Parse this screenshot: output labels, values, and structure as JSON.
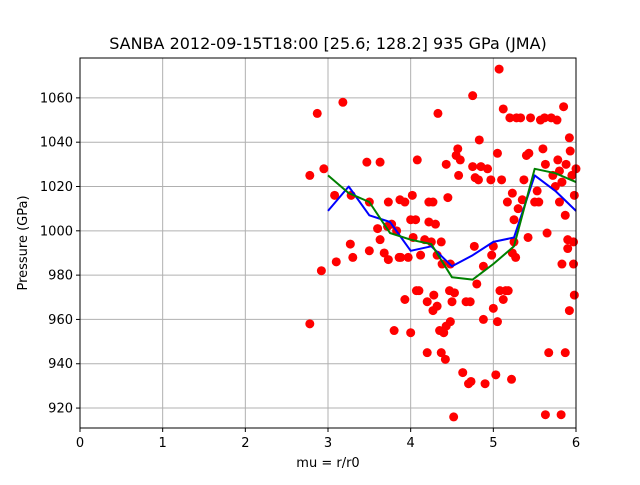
{
  "chart_data": {
    "type": "scatter",
    "title": "SANBA 2012-09-15T18:00 [25.6; 128.2] 935 GPa (JMA)",
    "xlabel": "mu = r/r0",
    "ylabel": "Pressure (GPa)",
    "xlim": [
      0,
      6
    ],
    "ylim": [
      911,
      1078
    ],
    "xticks": [
      0,
      1,
      2,
      3,
      4,
      5,
      6
    ],
    "yticks": [
      920,
      940,
      960,
      980,
      1000,
      1020,
      1040,
      1060
    ],
    "grid": true,
    "colors": {
      "points": "#ff0000",
      "blue_line": "#0000ff",
      "green_line": "#008000",
      "grid": "#b0b0b0"
    },
    "points": [
      [
        2.78,
        1025
      ],
      [
        2.78,
        958
      ],
      [
        2.87,
        1053
      ],
      [
        2.92,
        982
      ],
      [
        2.95,
        1028
      ],
      [
        3.08,
        1016
      ],
      [
        3.1,
        986
      ],
      [
        3.18,
        1058
      ],
      [
        3.27,
        994
      ],
      [
        3.28,
        1016
      ],
      [
        3.3,
        988
      ],
      [
        3.47,
        1031
      ],
      [
        3.5,
        991
      ],
      [
        3.5,
        1013
      ],
      [
        3.6,
        1001
      ],
      [
        3.63,
        1031
      ],
      [
        3.63,
        996
      ],
      [
        3.68,
        990
      ],
      [
        3.72,
        1002
      ],
      [
        3.73,
        1013
      ],
      [
        3.73,
        987
      ],
      [
        3.77,
        1003
      ],
      [
        3.8,
        955
      ],
      [
        3.83,
        1000
      ],
      [
        3.86,
        988
      ],
      [
        3.87,
        1014
      ],
      [
        3.88,
        988
      ],
      [
        3.93,
        969
      ],
      [
        3.93,
        1013
      ],
      [
        3.97,
        988
      ],
      [
        4.0,
        1005
      ],
      [
        4.0,
        954
      ],
      [
        4.02,
        1016
      ],
      [
        4.03,
        997
      ],
      [
        4.06,
        1005
      ],
      [
        4.07,
        973
      ],
      [
        4.08,
        1032
      ],
      [
        4.1,
        973
      ],
      [
        4.12,
        989
      ],
      [
        4.17,
        996
      ],
      [
        4.2,
        945
      ],
      [
        4.2,
        968
      ],
      [
        4.22,
        1013
      ],
      [
        4.22,
        1004
      ],
      [
        4.25,
        995
      ],
      [
        4.27,
        964
      ],
      [
        4.27,
        1013
      ],
      [
        4.28,
        971
      ],
      [
        4.3,
        1003
      ],
      [
        4.32,
        989
      ],
      [
        4.32,
        966
      ],
      [
        4.33,
        1053
      ],
      [
        4.35,
        955
      ],
      [
        4.37,
        945
      ],
      [
        4.37,
        995
      ],
      [
        4.38,
        985
      ],
      [
        4.4,
        954
      ],
      [
        4.42,
        942
      ],
      [
        4.43,
        957
      ],
      [
        4.43,
        1030
      ],
      [
        4.45,
        1015
      ],
      [
        4.47,
        973
      ],
      [
        4.48,
        959
      ],
      [
        4.48,
        985
      ],
      [
        4.5,
        968
      ],
      [
        4.52,
        916
      ],
      [
        4.53,
        972
      ],
      [
        4.55,
        1034
      ],
      [
        4.57,
        1037
      ],
      [
        4.58,
        1025
      ],
      [
        4.6,
        1032
      ],
      [
        4.63,
        936
      ],
      [
        4.67,
        968
      ],
      [
        4.7,
        931
      ],
      [
        4.72,
        968
      ],
      [
        4.73,
        932
      ],
      [
        4.75,
        1029
      ],
      [
        4.75,
        1061
      ],
      [
        4.77,
        993
      ],
      [
        4.78,
        1024
      ],
      [
        4.8,
        976
      ],
      [
        4.82,
        1023
      ],
      [
        4.83,
        1041
      ],
      [
        4.85,
        1029
      ],
      [
        4.88,
        960
      ],
      [
        4.88,
        984
      ],
      [
        4.9,
        931
      ],
      [
        4.93,
        1028
      ],
      [
        4.97,
        1023
      ],
      [
        4.98,
        989
      ],
      [
        5.0,
        965
      ],
      [
        5.0,
        993
      ],
      [
        5.03,
        935
      ],
      [
        5.05,
        959
      ],
      [
        5.05,
        1035
      ],
      [
        5.07,
        1073
      ],
      [
        5.08,
        973
      ],
      [
        5.1,
        1023
      ],
      [
        5.12,
        1055
      ],
      [
        5.12,
        969
      ],
      [
        5.15,
        973
      ],
      [
        5.17,
        1013
      ],
      [
        5.18,
        973
      ],
      [
        5.2,
        1051
      ],
      [
        5.22,
        933
      ],
      [
        5.23,
        1017
      ],
      [
        5.23,
        990
      ],
      [
        5.25,
        995
      ],
      [
        5.25,
        1005
      ],
      [
        5.27,
        988
      ],
      [
        5.28,
        1051
      ],
      [
        5.3,
        1010
      ],
      [
        5.33,
        1051
      ],
      [
        5.35,
        1014
      ],
      [
        5.37,
        1023
      ],
      [
        5.4,
        1034
      ],
      [
        5.42,
        997
      ],
      [
        5.43,
        1035
      ],
      [
        5.45,
        1051
      ],
      [
        5.5,
        1013
      ],
      [
        5.53,
        1018
      ],
      [
        5.55,
        1013
      ],
      [
        5.57,
        1050
      ],
      [
        5.6,
        1037
      ],
      [
        5.62,
        1051
      ],
      [
        5.63,
        1030
      ],
      [
        5.63,
        917
      ],
      [
        5.65,
        999
      ],
      [
        5.67,
        945
      ],
      [
        5.7,
        1051
      ],
      [
        5.72,
        1025
      ],
      [
        5.75,
        1020
      ],
      [
        5.77,
        1050
      ],
      [
        5.78,
        1032
      ],
      [
        5.8,
        1027
      ],
      [
        5.8,
        1013
      ],
      [
        5.82,
        917
      ],
      [
        5.83,
        1022
      ],
      [
        5.83,
        985
      ],
      [
        5.85,
        1056
      ],
      [
        5.87,
        1007
      ],
      [
        5.87,
        945
      ],
      [
        5.88,
        1030
      ],
      [
        5.9,
        996
      ],
      [
        5.9,
        992
      ],
      [
        5.92,
        964
      ],
      [
        5.92,
        1042
      ],
      [
        5.93,
        1036
      ],
      [
        5.95,
        1025
      ],
      [
        5.97,
        995
      ],
      [
        5.97,
        985
      ],
      [
        5.98,
        971
      ],
      [
        5.98,
        1016
      ],
      [
        6.0,
        1028
      ]
    ],
    "series": [
      {
        "color": "#0000ff",
        "x": [
          3.0,
          3.25,
          3.5,
          3.75,
          4.0,
          4.25,
          4.5,
          4.75,
          5.0,
          5.25,
          5.5,
          5.75,
          6.0
        ],
        "y": [
          1009,
          1020,
          1007,
          1004,
          991,
          993,
          984,
          989,
          995,
          997,
          1025,
          1018,
          1009
        ]
      },
      {
        "color": "#008000",
        "x": [
          3.0,
          3.25,
          3.5,
          3.75,
          4.0,
          4.25,
          4.5,
          4.75,
          5.0,
          5.25,
          5.5,
          5.75,
          6.0
        ],
        "y": [
          1025,
          1017,
          1013,
          999,
          996,
          994,
          979,
          978,
          985,
          993,
          1028,
          1026,
          1022
        ]
      }
    ]
  }
}
